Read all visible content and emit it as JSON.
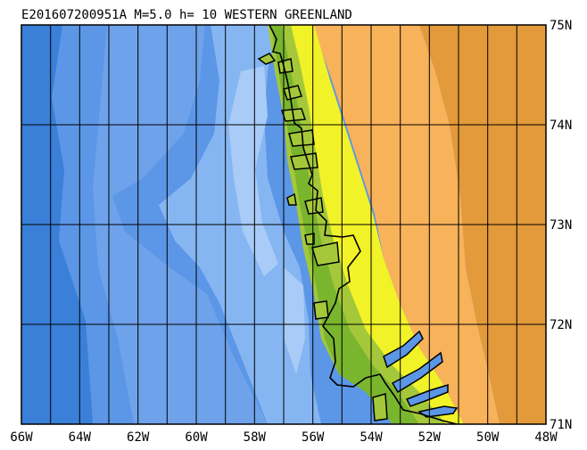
{
  "map": {
    "title": "E201607200951A M=5.0 h= 10 WESTERN GREENLAND",
    "lon_labels": [
      "66W",
      "64W",
      "62W",
      "60W",
      "58W",
      "56W",
      "54W",
      "52W",
      "50W",
      "48W"
    ],
    "lat_labels": [
      "75N",
      "74N",
      "73N",
      "72N",
      "71N"
    ],
    "colors": {
      "deep_ocean": "#3a7fd8",
      "ocean_mid": "#5c96e6",
      "ocean_shelf": "#86b6f2",
      "ocean_shallow": "#a8cbf7",
      "coast_green_dark": "#7ab52e",
      "coast_green": "#a4c83a",
      "coast_yellow": "#f2f228",
      "ice_orange": "#f8b25a",
      "ice_orange_dark": "#e39a3a",
      "grid": "#000000"
    }
  }
}
